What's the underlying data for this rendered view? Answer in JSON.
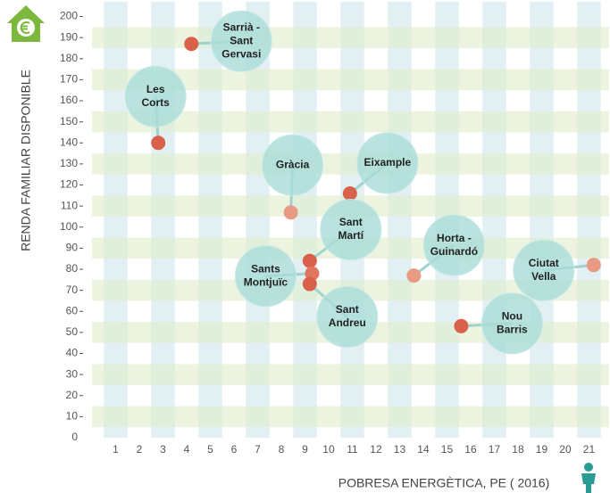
{
  "chart_data": {
    "type": "scatter",
    "y_label": "RENDA FAMILIAR DISPONIBLE",
    "x_label": "POBRESA ENERGÈTICA, PE ( 2016)",
    "xlim": [
      0,
      21.85
    ],
    "xticks": [
      1,
      2,
      3,
      4,
      5,
      6,
      7,
      8,
      9,
      10,
      11,
      12,
      13,
      14,
      15,
      16,
      17,
      18,
      19,
      20,
      21
    ],
    "ylim": [
      0,
      207
    ],
    "yticks": [
      0,
      10,
      20,
      30,
      40,
      50,
      60,
      70,
      80,
      90,
      100,
      110,
      120,
      130,
      140,
      150,
      160,
      170,
      180,
      190,
      200
    ],
    "grid": true,
    "points": [
      {
        "label": [
          "Sarrià -",
          "Sant",
          "Gervasi"
        ],
        "x": 4.2,
        "y": 187,
        "color": "#d9604a"
      },
      {
        "label": [
          "Les",
          "Corts"
        ],
        "x": 2.8,
        "y": 140,
        "color": "#d9604a"
      },
      {
        "label": [
          "Gràcia"
        ],
        "x": 8.4,
        "y": 107,
        "color": "#e89a82"
      },
      {
        "label": [
          "Eixample"
        ],
        "x": 10.9,
        "y": 116,
        "color": "#d9604a"
      },
      {
        "label": [
          "Sant",
          "Martí"
        ],
        "x": 9.2,
        "y": 84,
        "color": "#d9604a"
      },
      {
        "label": [
          "Sants",
          "Montjuïc"
        ],
        "x": 9.3,
        "y": 78,
        "color": "#e07660"
      },
      {
        "label": [
          "Sant",
          "Andreu"
        ],
        "x": 9.2,
        "y": 73,
        "color": "#d9604a"
      },
      {
        "label": [
          "Horta -",
          "Guinardó"
        ],
        "x": 13.6,
        "y": 77,
        "color": "#e89a82"
      },
      {
        "label": [
          "Ciutat",
          "Vella"
        ],
        "x": 21.2,
        "y": 82,
        "color": "#e89a82"
      },
      {
        "label": [
          "Nou",
          "Barris"
        ],
        "x": 15.6,
        "y": 53,
        "color": "#d9604a"
      }
    ]
  }
}
